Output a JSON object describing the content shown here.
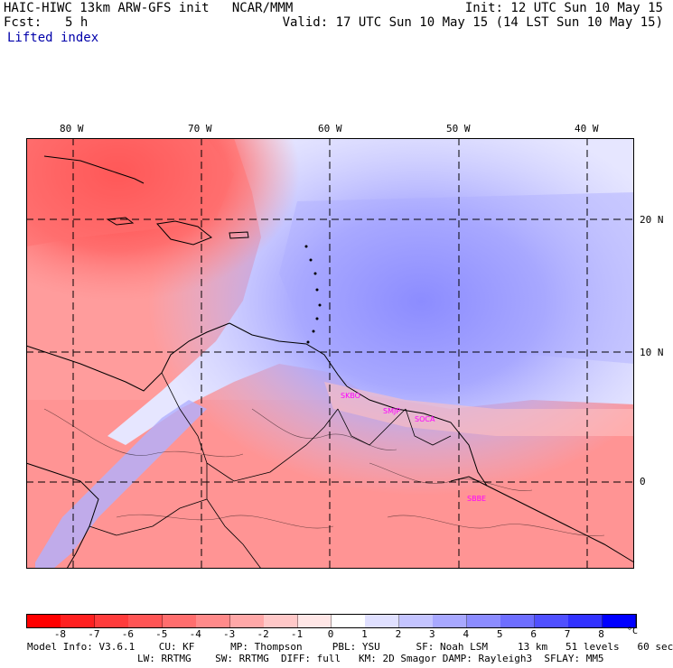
{
  "header": {
    "line1_left": "HAIC-HIWC 13km ARW-GFS init   NCAR/MMM",
    "line1_right": "Init: 12 UTC Sun 10 May 15",
    "fcst_label": "Fcst:",
    "fcst_value": "5 h",
    "valid": "Valid: 17 UTC Sun 10 May 15 (14 LST Sun 10 May 15)",
    "field_name": "Lifted index"
  },
  "map": {
    "lon_labels": [
      "80 W",
      "70 W",
      "60 W",
      "50 W",
      "40 W"
    ],
    "lat_labels": [
      "20 N",
      "10 N",
      "0"
    ],
    "stations": [
      "SKBO",
      "SMJP",
      "SOCA",
      "SBBE"
    ],
    "colors": {
      "station_label": "#ff00ff",
      "gridline": "#000000",
      "coast": "#000000"
    }
  },
  "colorbar": {
    "levels": [
      "-8",
      "-7",
      "-6",
      "-5",
      "-4",
      "-3",
      "-2",
      "-1",
      "0",
      "1",
      "2",
      "3",
      "4",
      "5",
      "6",
      "7",
      "8"
    ],
    "unit": "°C",
    "colors": [
      "#ff0000",
      "#ff2020",
      "#ff3c3c",
      "#ff5555",
      "#ff6e6e",
      "#ff8a8a",
      "#ffa8a8",
      "#ffc8c8",
      "#ffe6e6",
      "#ffffff",
      "#e0e0ff",
      "#c4c4ff",
      "#a8a8ff",
      "#8c8cff",
      "#6e6eff",
      "#5050ff",
      "#3232ff",
      "#0000ff"
    ]
  },
  "model_info": {
    "line1": "Model Info: V3.6.1    CU: KF      MP: Thompson     PBL: YSU      SF: Noah LSM     13 km   51 levels   60 sec",
    "line2": "LW: RRTMG    SW: RRTMG  DIFF: full   KM: 2D Smagor DAMP: Rayleigh3  SFLAY: MM5"
  }
}
